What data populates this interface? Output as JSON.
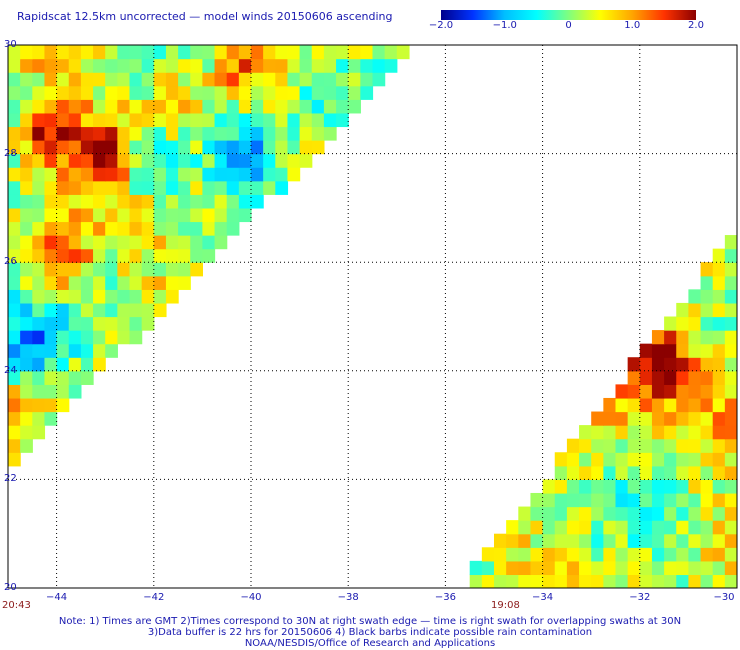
{
  "title": "Rapidscat 12.5km uncorrected — model winds 20150606 ascending",
  "colorbar": {
    "labels": [
      "−2.0",
      "−1.0",
      "0",
      "1.0",
      "2.0"
    ],
    "range": [
      -2.0,
      2.0
    ],
    "colors": [
      "#00008b",
      "#0033ff",
      "#00bfff",
      "#00ffff",
      "#7fff7f",
      "#ffff00",
      "#ffa500",
      "#ff3300",
      "#8b0000"
    ]
  },
  "map": {
    "lon_range": [
      -45,
      -30
    ],
    "lat_range": [
      20,
      30
    ],
    "lon_ticks": [
      "−44",
      "−42",
      "−40",
      "−38",
      "−36",
      "−34",
      "−32",
      "−30"
    ],
    "lat_ticks": [
      "30",
      "28",
      "26",
      "24",
      "22",
      "20"
    ],
    "grid": true,
    "swaths": [
      {
        "name": "western swath",
        "edge_from": [
          -36.5,
          30
        ],
        "edge_to": [
          -45,
          22.2
        ]
      },
      {
        "name": "eastern swath",
        "edge_from": [
          -35.7,
          20
        ],
        "edge_to": [
          -30,
          26.6
        ]
      }
    ],
    "hotspots": [
      {
        "lon": -44.2,
        "lat": 28.3,
        "value": 2.0
      },
      {
        "lon": -43.0,
        "lat": 28.1,
        "value": 1.9
      },
      {
        "lon": -43.9,
        "lat": 26.0,
        "value": 1.9
      },
      {
        "lon": -41.5,
        "lat": 28.9,
        "value": 1.5
      },
      {
        "lon": -31.7,
        "lat": 24.2,
        "value": 2.0
      },
      {
        "lon": -32.9,
        "lat": 23.5,
        "value": 1.6
      },
      {
        "lon": -40.3,
        "lat": 29.5,
        "value": 1.6
      }
    ],
    "coldspots": [
      {
        "lon": -42.0,
        "lat": 27.8,
        "value": -1.2
      },
      {
        "lon": -40.0,
        "lat": 28.0,
        "value": -1.1
      },
      {
        "lon": -44.5,
        "lat": 24.4,
        "value": -1.3
      },
      {
        "lon": -38.4,
        "lat": 28.7,
        "value": -1.0
      }
    ]
  },
  "times": {
    "left": "20:43",
    "middle": "19:08"
  },
  "notes": [
    "Note: 1) Times are GMT 2)Times correspond to 30N at right swath edge — time is right swath for overlapping swaths at 30N",
    "3)Data buffer is 22 hrs for 20150606 4) Black barbs indicate possible rain contamination",
    "NOAA/NESDIS/Office of Research and Applications"
  ]
}
